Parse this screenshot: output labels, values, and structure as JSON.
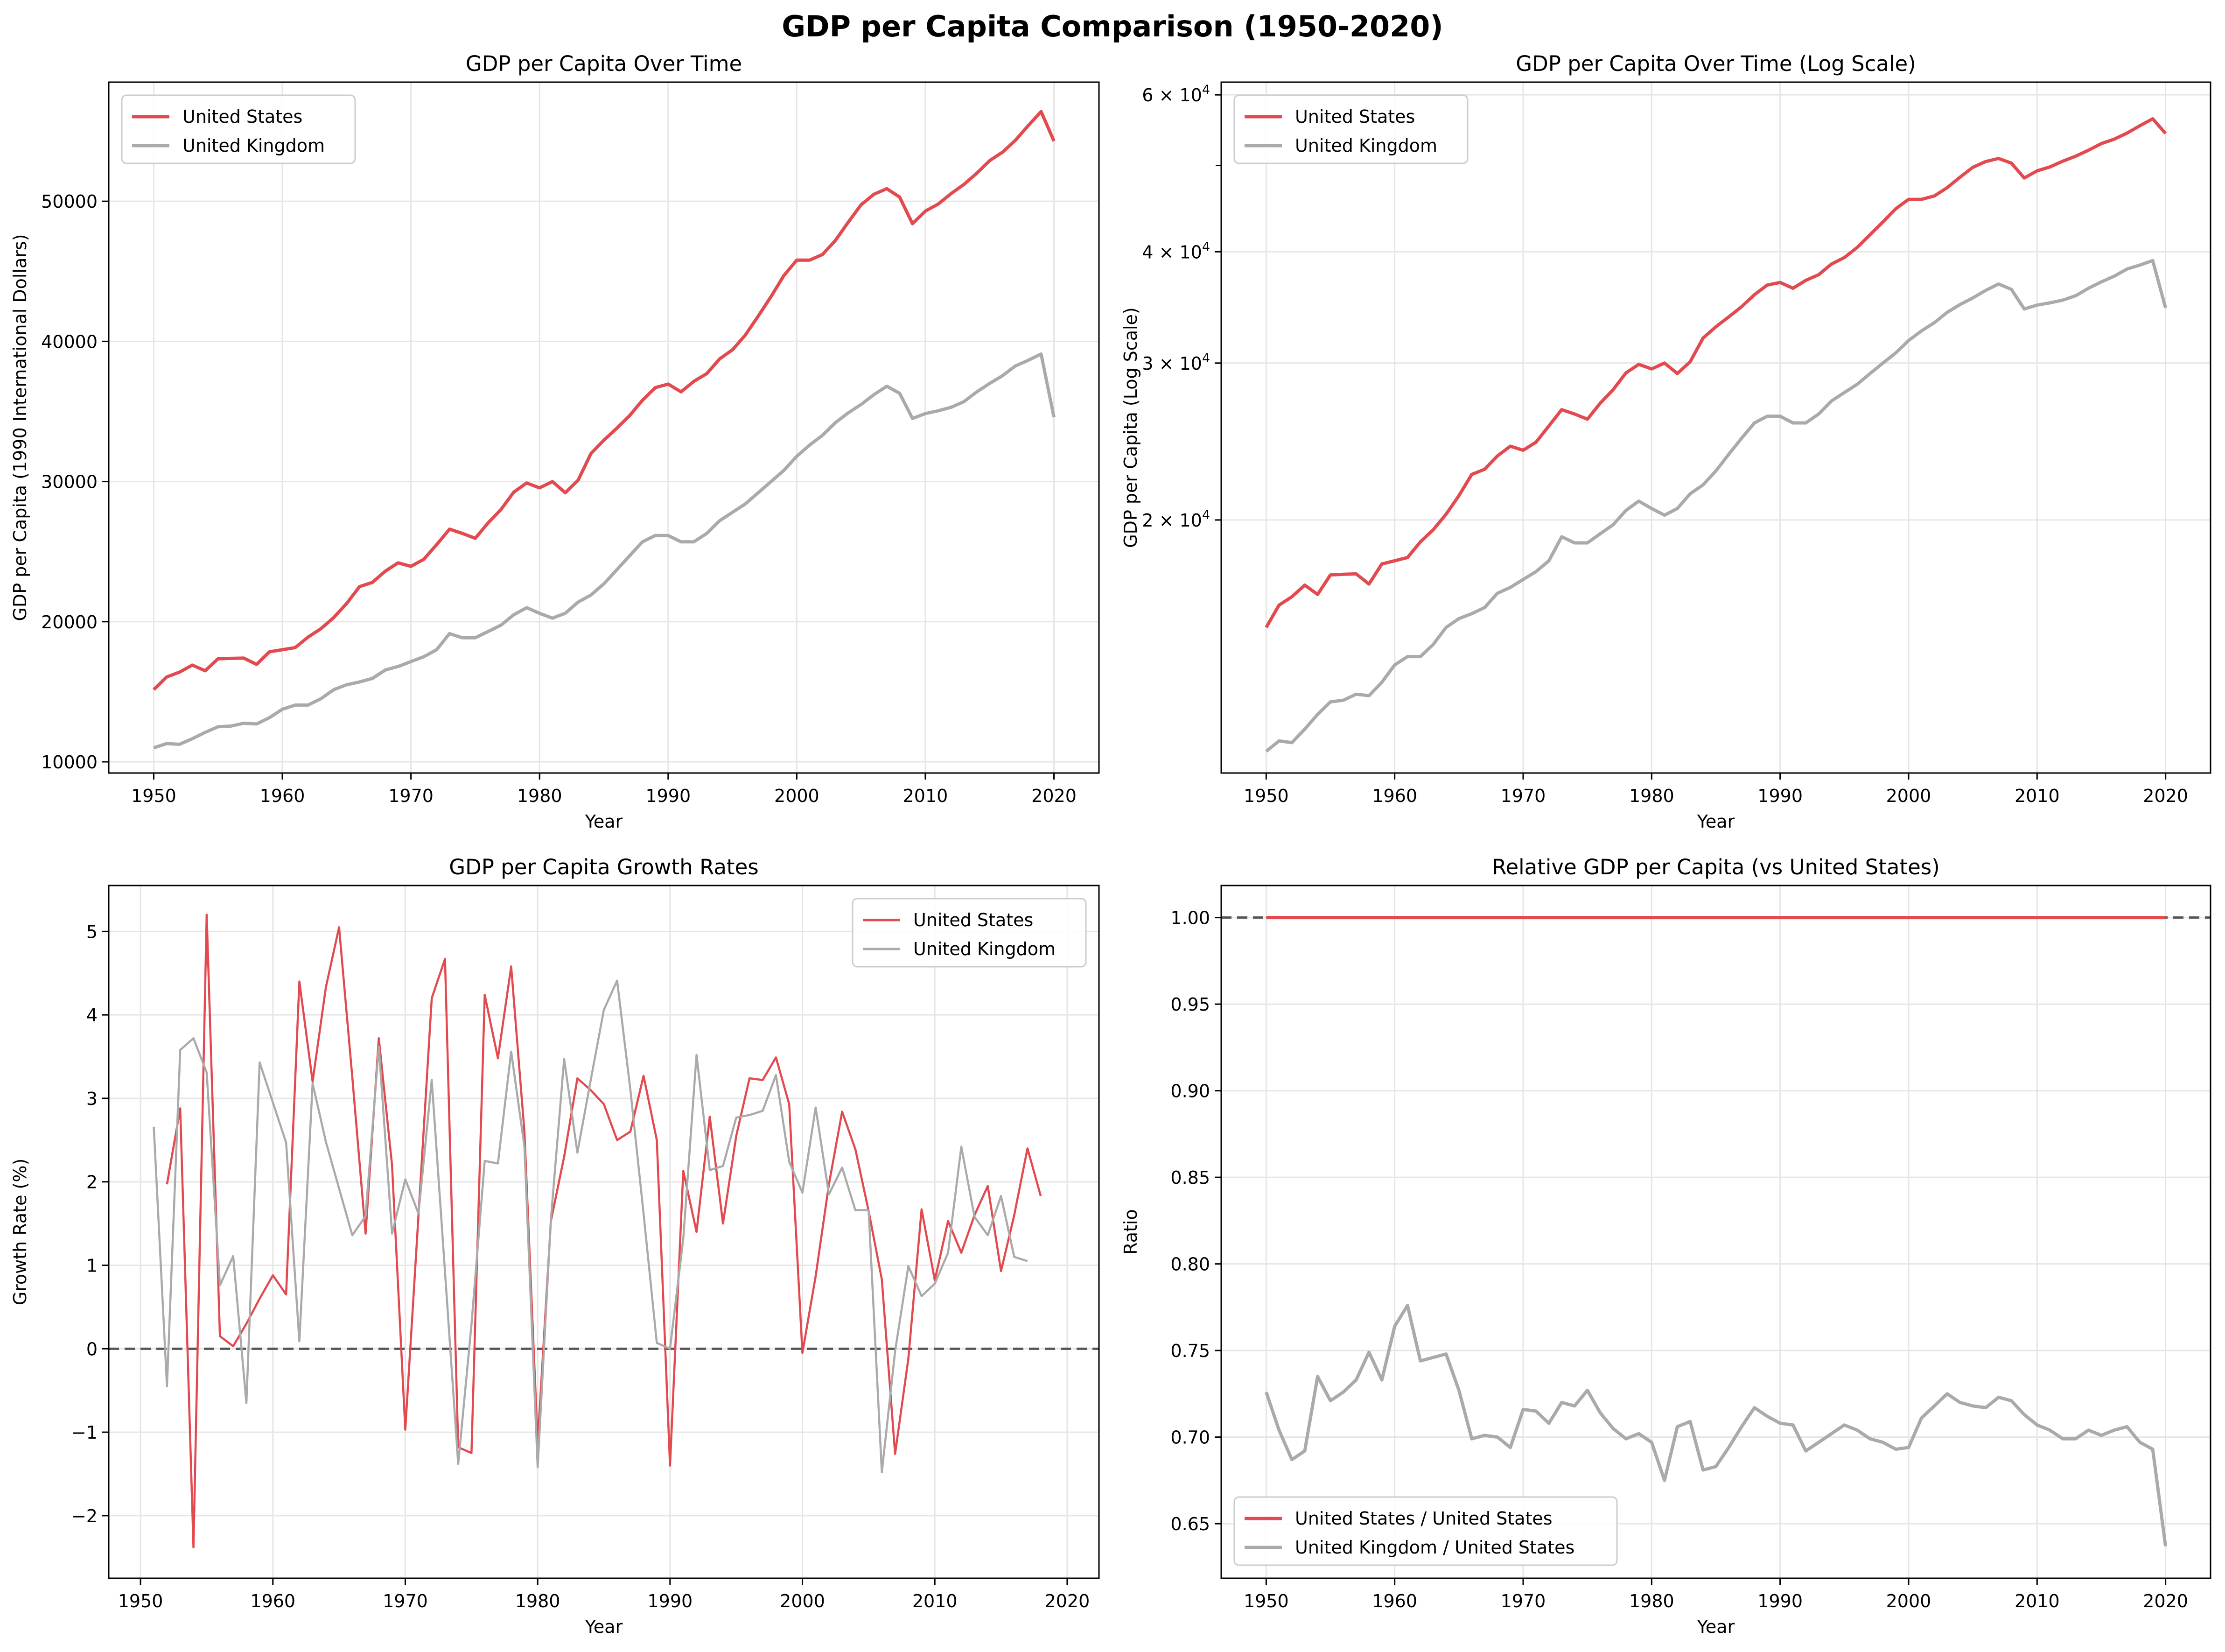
{
  "figure": {
    "suptitle": "GDP per Capita Comparison (1950-2020)"
  },
  "colors": {
    "us": "#e24a4f",
    "uk": "#aaaaaa",
    "grid": "#e6e6e6",
    "ref": "#555555"
  },
  "chart_data": [
    {
      "type": "line",
      "title": "GDP per Capita Over Time",
      "xlabel": "Year",
      "ylabel": "GDP per Capita (1990 International Dollars)",
      "xlim": [
        1946.5,
        2023.5
      ],
      "ylim": [
        9200,
        58500
      ],
      "xticks": [
        1950,
        1960,
        1970,
        1980,
        1990,
        2000,
        2010,
        2020
      ],
      "yticks": [
        10000,
        20000,
        30000,
        40000,
        50000
      ],
      "ytick_labels": [
        "10000",
        "20000",
        "30000",
        "40000",
        "50000"
      ],
      "grid": true,
      "legend": "upper-left",
      "x_start": 1950,
      "series": [
        {
          "name": "United States",
          "color": "#e24a4f",
          "values": [
            15150,
            16050,
            16400,
            16900,
            16500,
            17350,
            17380,
            17400,
            16950,
            17850,
            18000,
            18150,
            18900,
            19500,
            20300,
            21300,
            22500,
            22800,
            23600,
            24200,
            23950,
            24450,
            25500,
            26600,
            26300,
            25950,
            27050,
            28000,
            29250,
            29900,
            29550,
            30000,
            29200,
            30100,
            32000,
            32950,
            33800,
            34700,
            35800,
            36700,
            36950,
            36400,
            37150,
            37700,
            38750,
            39400,
            40450,
            41800,
            43200,
            44700,
            45800,
            45800,
            46200,
            47200,
            48500,
            49750,
            50500,
            50900,
            50300,
            48400,
            49300,
            49800,
            50550,
            51200,
            52000,
            52900,
            53500,
            54350,
            55400,
            56400,
            54300
          ]
        },
        {
          "name": "United Kingdom",
          "color": "#aaaaaa",
          "values": [
            11000,
            11300,
            11250,
            11650,
            12100,
            12500,
            12550,
            12750,
            12700,
            13150,
            13750,
            14050,
            14050,
            14500,
            15150,
            15500,
            15700,
            15950,
            16550,
            16800,
            17150,
            17500,
            18000,
            19150,
            18850,
            18850,
            19300,
            19750,
            20500,
            21000,
            20600,
            20250,
            20600,
            21400,
            21900,
            22700,
            23700,
            24700,
            25700,
            26150,
            26150,
            25700,
            25700,
            26300,
            27200,
            27800,
            28400,
            29200,
            30000,
            30800,
            31800,
            32600,
            33300,
            34200,
            34900,
            35500,
            36200,
            36800,
            36300,
            34500,
            34850,
            35050,
            35300,
            35700,
            36400,
            37000,
            37550,
            38250,
            38650,
            39100,
            34600
          ]
        }
      ]
    },
    {
      "type": "line",
      "title": "GDP per Capita Over Time (Log Scale)",
      "xlabel": "Year",
      "ylabel": "GDP per Capita (Log Scale)",
      "yscale": "log",
      "xlim": [
        1946.5,
        2023.5
      ],
      "ylim": [
        10400,
        62000
      ],
      "xticks": [
        1950,
        1960,
        1970,
        1980,
        1990,
        2000,
        2010,
        2020
      ],
      "yticks": [
        20000,
        30000,
        40000,
        60000
      ],
      "ytick_labels": [
        [
          "2",
          "10",
          "4"
        ],
        [
          "3",
          "10",
          "4"
        ],
        [
          "4",
          "10",
          "4"
        ],
        [
          "6",
          "10",
          "4"
        ]
      ],
      "grid": true,
      "legend": "upper-left",
      "x_start": 1950,
      "series": [
        {
          "name": "United States",
          "color": "#e24a4f",
          "values": [
            15150,
            16050,
            16400,
            16900,
            16500,
            17350,
            17380,
            17400,
            16950,
            17850,
            18000,
            18150,
            18900,
            19500,
            20300,
            21300,
            22500,
            22800,
            23600,
            24200,
            23950,
            24450,
            25500,
            26600,
            26300,
            25950,
            27050,
            28000,
            29250,
            29900,
            29550,
            30000,
            29200,
            30100,
            32000,
            32950,
            33800,
            34700,
            35800,
            36700,
            36950,
            36400,
            37150,
            37700,
            38750,
            39400,
            40450,
            41800,
            43200,
            44700,
            45800,
            45800,
            46200,
            47200,
            48500,
            49750,
            50500,
            50900,
            50300,
            48400,
            49300,
            49800,
            50550,
            51200,
            52000,
            52900,
            53500,
            54350,
            55400,
            56400,
            54300
          ]
        },
        {
          "name": "United Kingdom",
          "color": "#aaaaaa",
          "values": [
            11000,
            11300,
            11250,
            11650,
            12100,
            12500,
            12550,
            12750,
            12700,
            13150,
            13750,
            14050,
            14050,
            14500,
            15150,
            15500,
            15700,
            15950,
            16550,
            16800,
            17150,
            17500,
            18000,
            19150,
            18850,
            18850,
            19300,
            19750,
            20500,
            21000,
            20600,
            20250,
            20600,
            21400,
            21900,
            22700,
            23700,
            24700,
            25700,
            26150,
            26150,
            25700,
            25700,
            26300,
            27200,
            27800,
            28400,
            29200,
            30000,
            30800,
            31800,
            32600,
            33300,
            34200,
            34900,
            35500,
            36200,
            36800,
            36300,
            34500,
            34850,
            35050,
            35300,
            35700,
            36400,
            37000,
            37550,
            38250,
            38650,
            39100,
            34600
          ]
        }
      ]
    },
    {
      "type": "line",
      "title": "GDP per Capita Growth Rates",
      "xlabel": "Year",
      "ylabel": "Growth Rate (%)",
      "xlim": [
        1947.6,
        2022.4
      ],
      "ylim": [
        -2.75,
        5.55
      ],
      "xticks": [
        1950,
        1960,
        1970,
        1980,
        1990,
        2000,
        2010,
        2020
      ],
      "yticks": [
        -2,
        -1,
        0,
        1,
        2,
        3,
        4,
        5
      ],
      "ytick_labels": [
        "−2",
        "−1",
        "0",
        "1",
        "2",
        "3",
        "4",
        "5"
      ],
      "reference_line": 0,
      "grid": true,
      "legend": "upper-right",
      "series": [
        {
          "name": "United States",
          "color": "#e24a4f",
          "x_start": 1952,
          "values": [
            1.97,
            2.88,
            -2.38,
            5.2,
            0.15,
            0.03,
            0.3,
            0.6,
            0.88,
            0.65,
            4.4,
            3.2,
            4.33,
            5.05,
            3.25,
            1.38,
            3.72,
            2.2,
            -0.97,
            1.6,
            4.2,
            4.67,
            -1.18,
            -1.25,
            4.24,
            3.48,
            4.58,
            2.6,
            -1.13,
            1.53,
            2.3,
            3.24,
            3.1,
            2.93,
            2.5,
            2.6,
            3.27,
            2.5,
            -1.4,
            2.13,
            1.4,
            2.78,
            1.5,
            2.55,
            3.24,
            3.22,
            3.49,
            2.93,
            -0.05,
            0.87,
            1.97,
            2.84,
            2.39,
            1.65,
            0.83,
            -1.26,
            -0.12,
            1.67,
            0.82,
            1.53,
            1.15,
            1.6,
            1.95,
            0.93,
            1.6,
            2.4,
            1.83
          ]
        },
        {
          "name": "United Kingdom",
          "color": "#aaaaaa",
          "x_start": 1951,
          "values": [
            2.66,
            -0.45,
            3.58,
            3.72,
            3.31,
            0.76,
            1.11,
            -0.65,
            3.43,
            2.95,
            2.47,
            0.09,
            3.18,
            2.48,
            1.92,
            1.36,
            1.59,
            3.62,
            1.38,
            2.03,
            1.62,
            3.22,
            0.92,
            -1.38,
            0.29,
            2.25,
            2.22,
            3.56,
            2.42,
            -1.42,
            1.55,
            3.47,
            2.35,
            3.21,
            4.06,
            4.41,
            3.11,
            1.62,
            0.07,
            0,
            1.32,
            3.52,
            2.14,
            2.19,
            2.77,
            2.8,
            2.85,
            3.28,
            2.24,
            1.87,
            2.89,
            1.85,
            2.17,
            1.66,
            1.66,
            -1.48,
            -0.03,
            0.99,
            0.63,
            0.78,
            1.15,
            2.42,
            1.58,
            1.36,
            1.83,
            1.1,
            1.05
          ]
        }
      ]
    },
    {
      "type": "line",
      "title": "Relative GDP per Capita (vs United States)",
      "xlabel": "Year",
      "ylabel": "Ratio",
      "xlim": [
        1946.5,
        2023.5
      ],
      "ylim": [
        0.6185,
        1.0185
      ],
      "xticks": [
        1950,
        1960,
        1970,
        1980,
        1990,
        2000,
        2010,
        2020
      ],
      "yticks": [
        0.65,
        0.7,
        0.75,
        0.8,
        0.85,
        0.9,
        0.95,
        1.0
      ],
      "ytick_labels": [
        "0.65",
        "0.70",
        "0.75",
        "0.80",
        "0.85",
        "0.90",
        "0.95",
        "1.00"
      ],
      "reference_line": 1.0,
      "grid": true,
      "legend": "lower-left",
      "x_start": 1950,
      "series": [
        {
          "name": "United States / United States",
          "color": "#e24a4f",
          "values": [
            1,
            1,
            1,
            1,
            1,
            1,
            1,
            1,
            1,
            1,
            1,
            1,
            1,
            1,
            1,
            1,
            1,
            1,
            1,
            1,
            1,
            1,
            1,
            1,
            1,
            1,
            1,
            1,
            1,
            1,
            1,
            1,
            1,
            1,
            1,
            1,
            1,
            1,
            1,
            1,
            1,
            1,
            1,
            1,
            1,
            1,
            1,
            1,
            1,
            1,
            1,
            1,
            1,
            1,
            1,
            1,
            1,
            1,
            1,
            1,
            1,
            1,
            1,
            1,
            1,
            1,
            1,
            1,
            1,
            1,
            1
          ]
        },
        {
          "name": "United Kingdom / United States",
          "color": "#aaaaaa",
          "values": [
            0.726,
            0.704,
            0.687,
            0.692,
            0.735,
            0.721,
            0.726,
            0.733,
            0.749,
            0.733,
            0.764,
            0.776,
            0.744,
            0.746,
            0.748,
            0.727,
            0.699,
            0.701,
            0.7,
            0.694,
            0.716,
            0.715,
            0.708,
            0.72,
            0.718,
            0.727,
            0.714,
            0.705,
            0.699,
            0.702,
            0.697,
            0.675,
            0.706,
            0.709,
            0.681,
            0.683,
            0.694,
            0.706,
            0.717,
            0.712,
            0.708,
            0.707,
            0.692,
            0.697,
            0.702,
            0.707,
            0.704,
            0.699,
            0.697,
            0.693,
            0.694,
            0.711,
            0.718,
            0.725,
            0.72,
            0.718,
            0.717,
            0.723,
            0.721,
            0.713,
            0.707,
            0.704,
            0.699,
            0.699,
            0.704,
            0.701,
            0.704,
            0.706,
            0.697,
            0.693,
            0.637
          ]
        }
      ]
    }
  ]
}
